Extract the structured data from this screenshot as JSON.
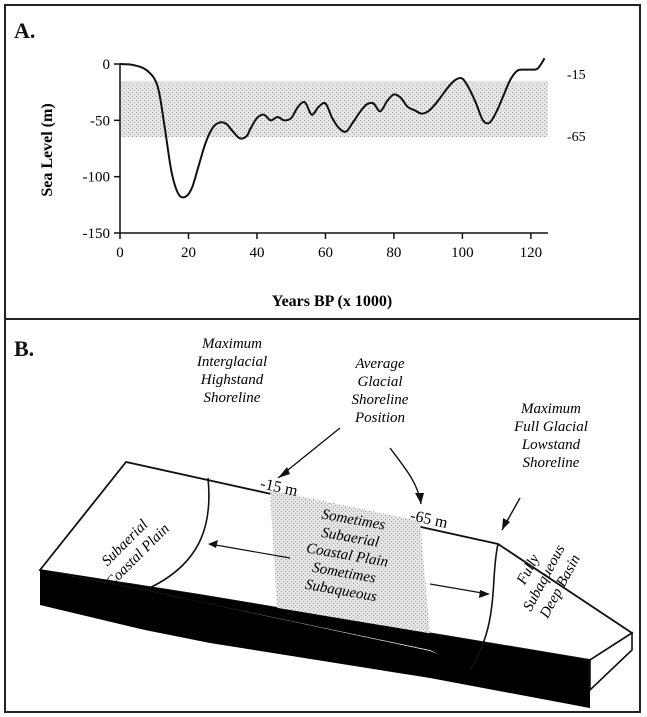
{
  "panelA": {
    "label": "A.",
    "ylabel": "Sea Level (m)",
    "xlabel": "Years BP (x 1000)",
    "band_labels": [
      "-15",
      "-65"
    ]
  },
  "panelB": {
    "label": "B.",
    "callouts": [
      [
        "Maximum",
        "Interglacial",
        "Highstand",
        "Shoreline"
      ],
      [
        "Average",
        "Glacial",
        "Shoreline",
        "Position"
      ],
      [
        "Maximum",
        "Full Glacial",
        "Lowstand",
        "Shoreline"
      ]
    ],
    "depth_labels": [
      "-15 m",
      "-65 m"
    ],
    "zones": {
      "left": [
        "Subaerial",
        "Coastal Plain"
      ],
      "middle": [
        "Sometimes",
        "Subaerial",
        "Coastal Plain",
        "Sometimes",
        "Subaqueous"
      ],
      "right": [
        "Fully",
        "Subaqueous",
        "Deep Basin"
      ]
    }
  },
  "chart_data": {
    "type": "line",
    "title": "",
    "xlabel": "Years BP (x 1000)",
    "ylabel": "Sea Level (m)",
    "xlim": [
      0,
      125
    ],
    "ylim": [
      -150,
      0
    ],
    "x_ticks": [
      0,
      20,
      40,
      60,
      80,
      100,
      120
    ],
    "y_ticks": [
      0,
      -50,
      -100,
      -150
    ],
    "grid": false,
    "shaded_band": {
      "y_top": -15,
      "y_bottom": -65,
      "x_range": [
        0,
        125
      ]
    },
    "series": [
      {
        "x": [
          0,
          4,
          8,
          11,
          13,
          15,
          17,
          19,
          21,
          23,
          25,
          27,
          29,
          31,
          33,
          35,
          37,
          38,
          40,
          42,
          44,
          46,
          48,
          50,
          52,
          54,
          56,
          58,
          60,
          62,
          64,
          66,
          68,
          70,
          72,
          74,
          76,
          78,
          80,
          82,
          84,
          86,
          88,
          90,
          92,
          94,
          96,
          98,
          100,
          102,
          104,
          106,
          108,
          110,
          112,
          114,
          116,
          118,
          120,
          122,
          124
        ],
        "y": [
          0,
          -1,
          -6,
          -20,
          -55,
          -95,
          -115,
          -118,
          -110,
          -90,
          -70,
          -57,
          -52,
          -53,
          -60,
          -66,
          -64,
          -58,
          -48,
          -45,
          -50,
          -47,
          -50,
          -48,
          -38,
          -34,
          -45,
          -38,
          -35,
          -48,
          -57,
          -60,
          -52,
          -43,
          -36,
          -35,
          -42,
          -33,
          -27,
          -30,
          -38,
          -41,
          -44,
          -42,
          -36,
          -28,
          -20,
          -14,
          -13,
          -22,
          -35,
          -50,
          -52,
          -42,
          -28,
          -14,
          -6,
          -5,
          -5,
          -4,
          5
        ]
      }
    ]
  }
}
